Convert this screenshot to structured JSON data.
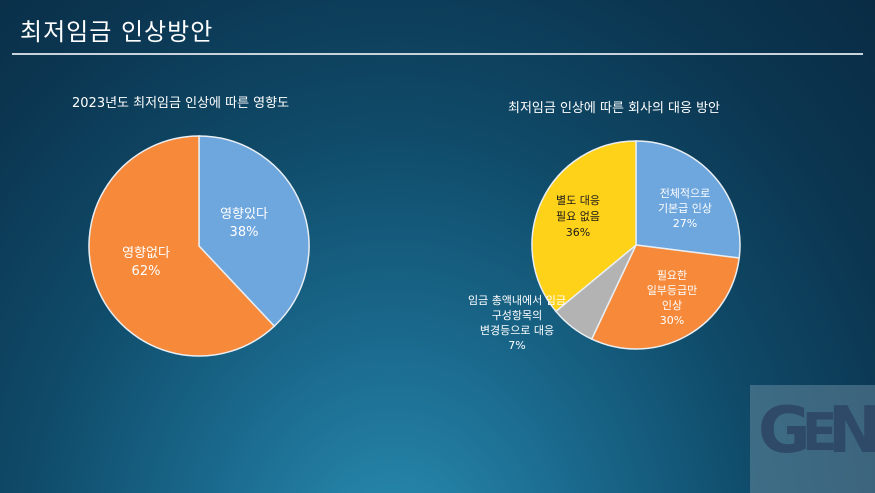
{
  "page": {
    "title": "최저임금 인상방안"
  },
  "chart_data": [
    {
      "type": "pie",
      "title": "2023년도 최저임금 인상에 따른 영향도",
      "slices": [
        {
          "label": "영향있다",
          "value": 38,
          "value_label": "38%",
          "color": "#6ea6de"
        },
        {
          "label": "영향없다",
          "value": 62,
          "value_label": "62%",
          "color": "#f6893a"
        }
      ]
    },
    {
      "type": "pie",
      "title": "최저임금 인상에 따른 회사의 대응 방안",
      "slices": [
        {
          "label": "전체적으로\n기본급 인상",
          "value": 27,
          "value_label": "27%",
          "color": "#6ea6de"
        },
        {
          "label": "필요한\n일부등급만\n인상",
          "value": 30,
          "value_label": "30%",
          "color": "#f6893a"
        },
        {
          "label": "임금 총액내에서 임금\n구성항목의\n변경등으로 대응",
          "value": 7,
          "value_label": "7%",
          "color": "#b3b3b3"
        },
        {
          "label": "별도 대응\n필요 없음",
          "value": 36,
          "value_label": "36%",
          "color": "#ffd21a"
        }
      ]
    }
  ],
  "logo": {
    "text": "GEN"
  }
}
